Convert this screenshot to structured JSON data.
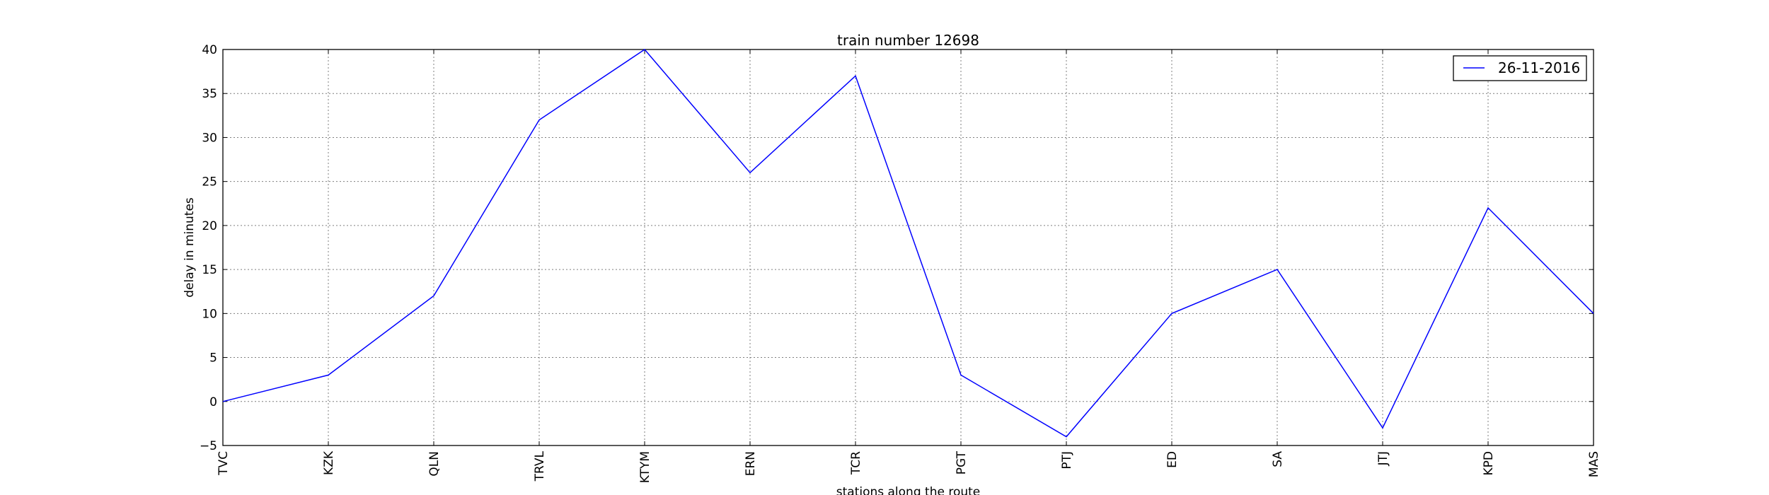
{
  "chart_data": {
    "type": "line",
    "title": "train number 12698",
    "xlabel": "stations along the route",
    "ylabel": "delay in minutes",
    "categories": [
      "TVC",
      "KZK",
      "QLN",
      "TRVL",
      "KTYM",
      "ERN",
      "TCR",
      "PGT",
      "PTJ",
      "ED",
      "SA",
      "JTJ",
      "KPD",
      "MAS"
    ],
    "series": [
      {
        "name": "26-11-2016",
        "color": "#0000ff",
        "values": [
          0,
          3,
          12,
          32,
          40,
          26,
          37,
          3,
          -4,
          10,
          15,
          -3,
          22,
          10
        ]
      }
    ],
    "ylim": [
      -5,
      40
    ],
    "yticks": [
      -5,
      0,
      5,
      10,
      15,
      20,
      25,
      30,
      35,
      40
    ],
    "ytick_labels": [
      "−5",
      "0",
      "5",
      "10",
      "15",
      "20",
      "25",
      "30",
      "35",
      "40"
    ],
    "grid": true,
    "legend_position": "top-right"
  }
}
